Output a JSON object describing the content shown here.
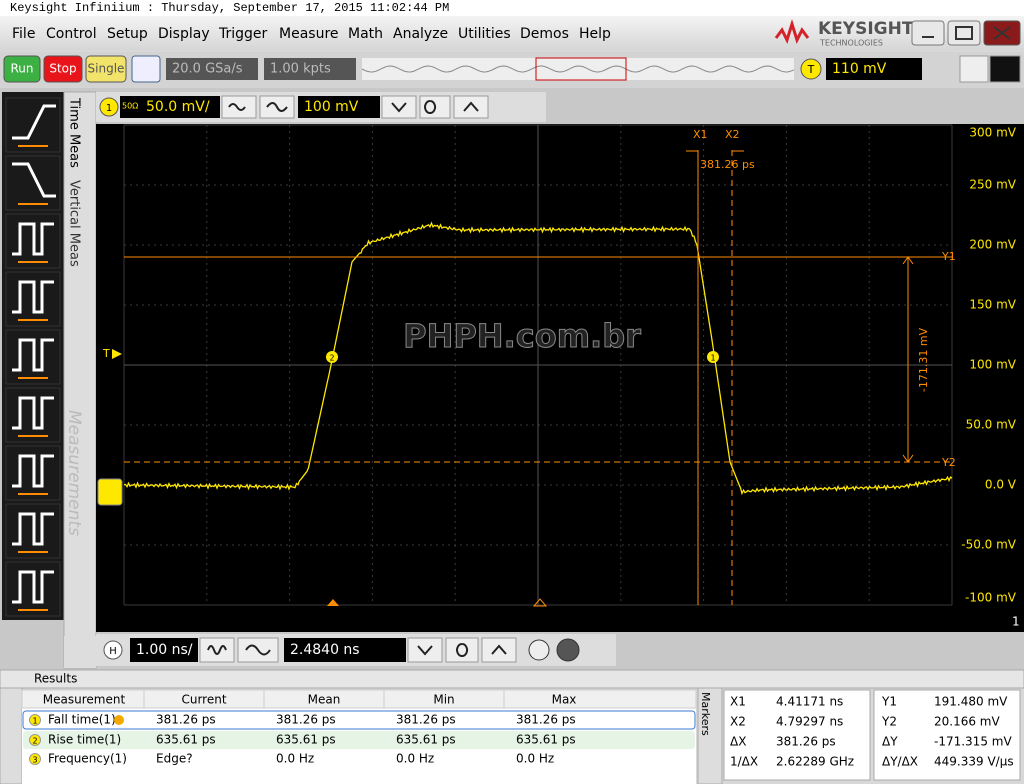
{
  "title_bar": "Keysight Infiniium : Thursday, September 17, 2015 11:02:44 PM",
  "menu": [
    "File",
    "Control",
    "Setup",
    "Display",
    "Trigger",
    "Measure",
    "Math",
    "Analyze",
    "Utilities",
    "Demos",
    "Help"
  ],
  "logo": {
    "name": "KEYSIGHT",
    "sub": "TECHNOLOGIES"
  },
  "toolbar": {
    "run": "Run",
    "stop": "Stop",
    "single": "Single",
    "sample_rate": "20.0 GSa/s",
    "memory": "1.00 kpts",
    "trigger_label": "T",
    "trigger_level": "110 mV"
  },
  "channel_bar": {
    "channel": "1",
    "impedance": "50Ω",
    "scale": "50.0 mV/",
    "offset": "100 mV"
  },
  "side_tabs": [
    "Time Meas",
    "Vertical Meas",
    "Measurements"
  ],
  "scope": {
    "y_labels": [
      "300 mV",
      "250 mV",
      "200 mV",
      "150 mV",
      "100 mV",
      "50.0 mV",
      "0.0 V",
      "-50.0 mV",
      "-100 mV"
    ],
    "channel_number": "1",
    "watermark": "PHPH.com.br",
    "trigger_marker": "T",
    "edge_markers": [
      "2",
      "1"
    ],
    "cursors": {
      "x1": "X1",
      "x2": "X2",
      "dx": "381.26 ps",
      "y1": "Y1",
      "y2": "Y2",
      "dy": "-171.31 mV"
    }
  },
  "horizontal_bar": {
    "label": "H",
    "scale": "1.00 ns/",
    "position": "2.4840 ns"
  },
  "results": {
    "title": "Results",
    "headers": [
      "Measurement",
      "Current",
      "Mean",
      "Min",
      "Max"
    ],
    "rows": [
      {
        "index": "1",
        "cells": [
          "Fall time(1)",
          "381.26 ps",
          "381.26 ps",
          "381.26 ps",
          "381.26 ps"
        ]
      },
      {
        "index": "2",
        "cells": [
          "Rise time(1)",
          "635.61 ps",
          "635.61 ps",
          "635.61 ps",
          "635.61 ps"
        ]
      },
      {
        "index": "3",
        "cells": [
          "Frequency(1)",
          "Edge?",
          "0.0 Hz",
          "0.0 Hz",
          "0.0 Hz"
        ]
      }
    ]
  },
  "markers": {
    "title": "Markers",
    "x_rows": [
      [
        "X1",
        "4.41171 ns"
      ],
      [
        "X2",
        "4.79297 ns"
      ],
      [
        "ΔX",
        "381.26 ps"
      ],
      [
        "1/ΔX",
        "2.62289 GHz"
      ]
    ],
    "y_rows": [
      [
        "Y1",
        "191.480 mV"
      ],
      [
        "Y2",
        "20.166 mV"
      ],
      [
        "ΔY",
        "-171.315 mV"
      ],
      [
        "ΔY/ΔX",
        "449.339 V/μs"
      ]
    ]
  }
}
